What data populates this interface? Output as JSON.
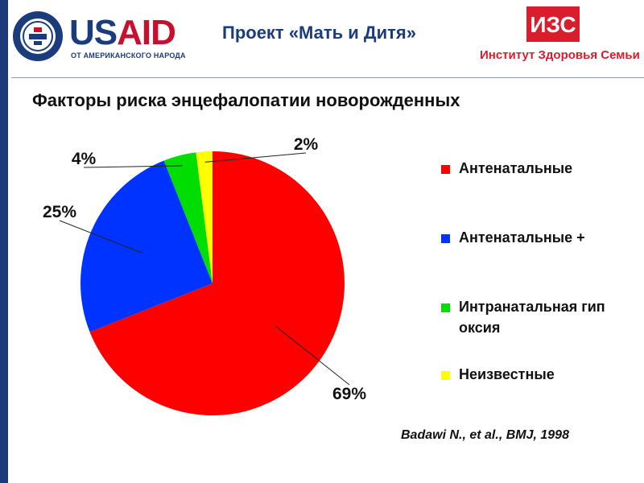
{
  "header": {
    "usaid_left": "US",
    "usaid_right": "AID",
    "usaid_subtitle": "ОТ АМЕРИКАНСКОГО НАРОДА",
    "project_title": "Проект «Мать и Дитя»",
    "org_abbrev": "ИЗС",
    "org_name": "Институт Здоровья Семьи"
  },
  "citation": "Badawi N., et al., BMJ, 1998",
  "colors": {
    "red": "#ff0000",
    "blue": "#0033ff",
    "green": "#00dd00",
    "yellow": "#ffff00"
  },
  "chart_data": {
    "type": "pie",
    "title": "Факторы риска энцефалопатии новорожденных",
    "slices": [
      {
        "label": "Антенатальные",
        "value": 69,
        "display": "69%",
        "color": "#ff0000"
      },
      {
        "label": "Антенатальные +",
        "value": 25,
        "display": "25%",
        "color": "#0033ff"
      },
      {
        "label": "Интранатальная гипоксия",
        "value": 4,
        "display": "4%",
        "color": "#00dd00"
      },
      {
        "label": "Неизвестные",
        "value": 2,
        "display": "2%",
        "color": "#ffff00"
      }
    ],
    "legend_position": "right"
  }
}
